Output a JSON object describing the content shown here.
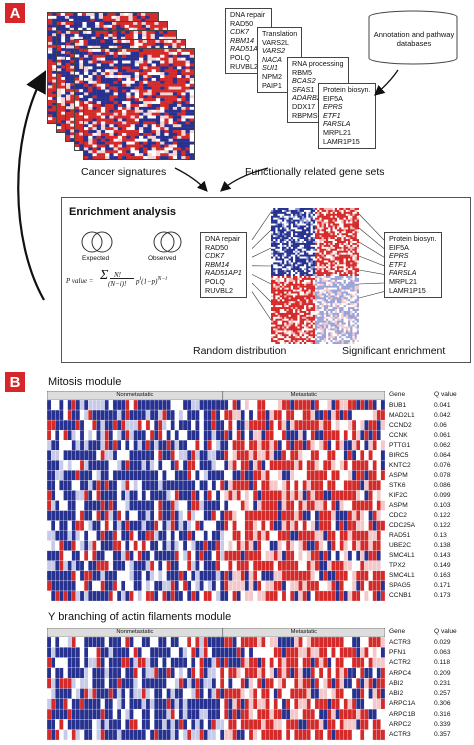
{
  "panel_a": {
    "label": "A",
    "gene_set_docs": [
      {
        "title": "DNA repair",
        "items": [
          "RAD50",
          "CDK7",
          "RBM14",
          "RAD51AP1",
          "POLQ",
          "RUVBL2"
        ]
      },
      {
        "title": "Translation",
        "items": [
          "VARS2L",
          "VARS2",
          "NACA",
          "SUI1",
          "NPM2",
          "PAIP1"
        ]
      },
      {
        "title": "RNA processing",
        "items": [
          "RBM5",
          "BCAS2",
          "SFAS1",
          "ADARB2",
          "DDX17",
          "RBPMS"
        ]
      },
      {
        "title": "Protein biosyn.",
        "items": [
          "EIF5A",
          "EPRS",
          "ETF1",
          "FARSLA",
          "MRPL21",
          "LAMR1P15"
        ]
      }
    ],
    "database_label": "Annotation and pathway databases",
    "cancer_signatures_label": "Cancer signatures",
    "gene_sets_label": "Functionally related gene sets",
    "enrichment": {
      "title": "Enrichment analysis",
      "expected": "Expected",
      "observed": "Observed",
      "formula_lhs": "P value =",
      "random_label": "Random distribution",
      "significant_label": "Significant enrichment",
      "left_doc": {
        "title": "DNA repair",
        "items": [
          "RAD50",
          "CDK7",
          "RBM14",
          "RAD51AP1",
          "POLQ",
          "RUVBL2"
        ]
      },
      "right_doc": {
        "title": "Protein biosyn.",
        "items": [
          "EIF5A",
          "EPRS",
          "ETF1",
          "FARSLA",
          "MRPL21",
          "LAMR1P15"
        ]
      }
    }
  },
  "panel_b": {
    "label": "B",
    "mitosis": {
      "title": "Mitosis module",
      "group_left": "Nonmetastatic",
      "group_right": "Metastatic",
      "col_gene": "Gene",
      "col_q": "Q value",
      "rows": [
        [
          "BUB1",
          "0.041"
        ],
        [
          "MAD2L1",
          "0.042"
        ],
        [
          "CCND2",
          "0.06"
        ],
        [
          "CCNK",
          "0.061"
        ],
        [
          "PTTG1",
          "0.062"
        ],
        [
          "BIRC5",
          "0.064"
        ],
        [
          "KNTC2",
          "0.076"
        ],
        [
          "ASPM",
          "0.078"
        ],
        [
          "STK6",
          "0.086"
        ],
        [
          "KIF2C",
          "0.099"
        ],
        [
          "ASPM",
          "0.103"
        ],
        [
          "CDC2",
          "0.122"
        ],
        [
          "CDC25A",
          "0.122"
        ],
        [
          "RAD51",
          "0.13"
        ],
        [
          "UBE2C",
          "0.138"
        ],
        [
          "SMC4L1",
          "0.143"
        ],
        [
          "TPX2",
          "0.149"
        ],
        [
          "SMC4L1",
          "0.163"
        ],
        [
          "SPAG5",
          "0.171"
        ],
        [
          "CCNB1",
          "0.173"
        ]
      ]
    },
    "actin": {
      "title": "Y branching of actin filaments module",
      "group_left": "Nonmetastatic",
      "group_right": "Metastatic",
      "col_gene": "Gene",
      "col_q": "Q value",
      "rows": [
        [
          "ACTR3",
          "0.029"
        ],
        [
          "PFN1",
          "0.063"
        ],
        [
          "ACTR2",
          "0.118"
        ],
        [
          "ARPC4",
          "0.209"
        ],
        [
          "ABI2",
          "0.231"
        ],
        [
          "ABI2",
          "0.257"
        ],
        [
          "ARPC1A",
          "0.306"
        ],
        [
          "ARPC1B",
          "0.316"
        ],
        [
          "ARPC2",
          "0.339"
        ],
        [
          "ACTR3",
          "0.357"
        ]
      ]
    }
  },
  "colors": {
    "red": "#d42a2a",
    "blue": "#27318f",
    "label_bg": "#d7262a"
  }
}
